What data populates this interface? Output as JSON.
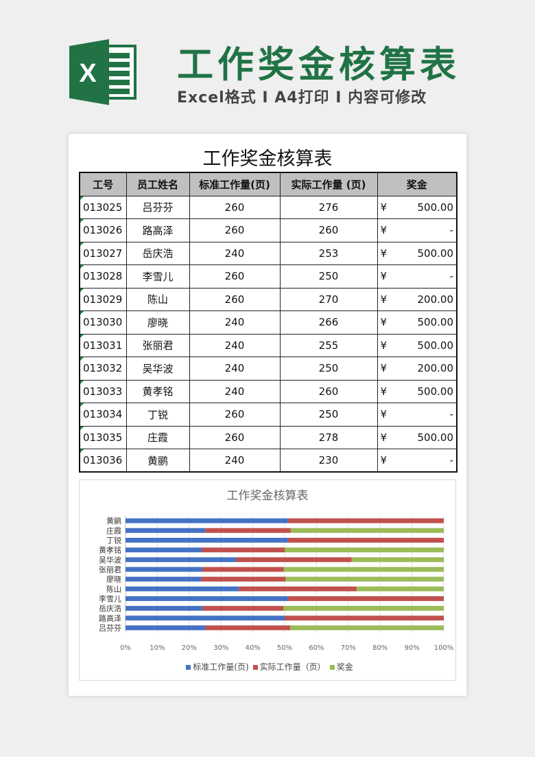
{
  "header": {
    "title": "工作奖金核算表",
    "subtitle": "Excel格式 I A4打印 I 内容可修改",
    "logo_letter": "X",
    "brand_color": "#217346"
  },
  "sheet": {
    "title": "工作奖金核算表",
    "columns": [
      "工号",
      "员工姓名",
      "标准工作量(页)",
      "实际工作量 (页)",
      "奖金"
    ],
    "currency": "¥",
    "rows": [
      [
        "013025",
        "吕芬芬",
        "260",
        "276",
        "500.00"
      ],
      [
        "013026",
        "路高泽",
        "260",
        "260",
        "-"
      ],
      [
        "013027",
        "岳庆浩",
        "240",
        "253",
        "500.00"
      ],
      [
        "013028",
        "李雪儿",
        "260",
        "250",
        "-"
      ],
      [
        "013029",
        "陈山",
        "260",
        "270",
        "200.00"
      ],
      [
        "013030",
        "廖晓",
        "240",
        "266",
        "500.00"
      ],
      [
        "013031",
        "张丽君",
        "240",
        "255",
        "500.00"
      ],
      [
        "013032",
        "吴华波",
        "240",
        "250",
        "200.00"
      ],
      [
        "013033",
        "黄孝铭",
        "240",
        "260",
        "500.00"
      ],
      [
        "013034",
        "丁锐",
        "260",
        "250",
        "-"
      ],
      [
        "013035",
        "庄霞",
        "260",
        "278",
        "500.00"
      ],
      [
        "013036",
        "黄鹂",
        "240",
        "230",
        "-"
      ]
    ]
  },
  "chart_data": {
    "type": "bar",
    "stacked": "percent",
    "orientation": "horizontal",
    "title": "工作奖金核算表",
    "categories": [
      "吕芬芬",
      "路高泽",
      "岳庆浩",
      "李雪儿",
      "陈山",
      "廖晓",
      "张丽君",
      "吴华波",
      "黄孝铭",
      "丁锐",
      "庄霞",
      "黄鹂"
    ],
    "series": [
      {
        "name": "标准工作量(页)",
        "color": "#4472c4",
        "values": [
          260,
          260,
          240,
          260,
          260,
          240,
          240,
          240,
          240,
          260,
          260,
          240
        ]
      },
      {
        "name": "实际工作量（页）",
        "color": "#c0504d",
        "values": [
          276,
          260,
          253,
          250,
          270,
          266,
          255,
          250,
          260,
          250,
          278,
          230
        ]
      },
      {
        "name": "奖金",
        "color": "#9bbb59",
        "values": [
          500,
          0,
          500,
          0,
          200,
          500,
          500,
          200,
          500,
          0,
          500,
          0
        ]
      }
    ],
    "xticks": [
      "0%",
      "10%",
      "20%",
      "30%",
      "40%",
      "50%",
      "60%",
      "70%",
      "80%",
      "90%",
      "100%"
    ],
    "xlim": [
      0,
      100
    ],
    "grid": true,
    "legend": "bottom"
  }
}
